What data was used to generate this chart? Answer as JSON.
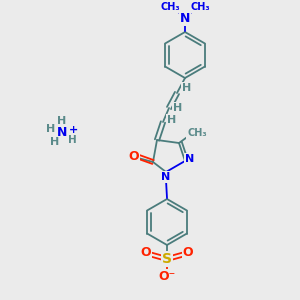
{
  "background_color": "#ebebeb",
  "bond_color": "#4a7c7c",
  "n_color": "#0000ee",
  "o_color": "#ff2200",
  "s_color": "#ccaa00",
  "h_color": "#5a8a8a",
  "figsize": [
    3.0,
    3.0
  ],
  "dpi": 100,
  "xlim": [
    0,
    300
  ],
  "ylim": [
    0,
    300
  ]
}
